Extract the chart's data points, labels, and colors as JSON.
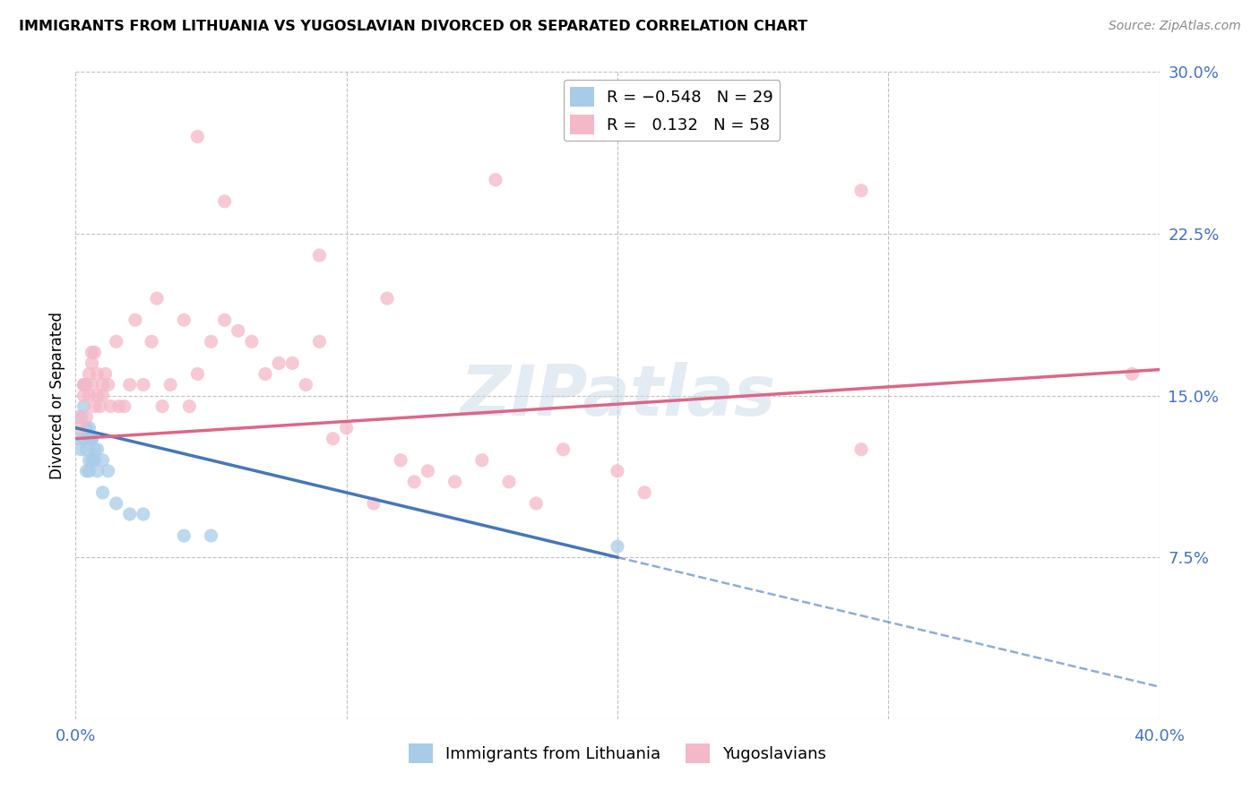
{
  "title": "IMMIGRANTS FROM LITHUANIA VS YUGOSLAVIAN DIVORCED OR SEPARATED CORRELATION CHART",
  "source": "Source: ZipAtlas.com",
  "ylabel": "Divorced or Separated",
  "xlim": [
    0.0,
    0.4
  ],
  "ylim": [
    0.0,
    0.3
  ],
  "watermark": "ZIPatlas",
  "legend_label1": "Immigrants from Lithuania",
  "legend_label2": "Yugoslavians",
  "blue_color": "#a8cce8",
  "pink_color": "#f4b8c8",
  "blue_line_color": "#4477bb",
  "pink_line_color": "#dd6688",
  "background_color": "#ffffff",
  "grid_color": "#bbbbbb",
  "blue_scatter_x": [
    0.001,
    0.002,
    0.002,
    0.003,
    0.003,
    0.003,
    0.004,
    0.004,
    0.004,
    0.005,
    0.005,
    0.005,
    0.005,
    0.006,
    0.006,
    0.006,
    0.007,
    0.007,
    0.008,
    0.008,
    0.01,
    0.01,
    0.012,
    0.015,
    0.02,
    0.025,
    0.04,
    0.05,
    0.2
  ],
  "blue_scatter_y": [
    0.13,
    0.14,
    0.125,
    0.155,
    0.145,
    0.13,
    0.135,
    0.125,
    0.115,
    0.13,
    0.135,
    0.12,
    0.115,
    0.12,
    0.13,
    0.13,
    0.125,
    0.12,
    0.125,
    0.115,
    0.12,
    0.105,
    0.115,
    0.1,
    0.095,
    0.095,
    0.085,
    0.085,
    0.08
  ],
  "pink_scatter_x": [
    0.001,
    0.002,
    0.003,
    0.003,
    0.004,
    0.004,
    0.005,
    0.005,
    0.006,
    0.006,
    0.006,
    0.007,
    0.007,
    0.008,
    0.008,
    0.009,
    0.01,
    0.01,
    0.011,
    0.012,
    0.013,
    0.015,
    0.016,
    0.018,
    0.02,
    0.022,
    0.025,
    0.028,
    0.03,
    0.032,
    0.035,
    0.04,
    0.042,
    0.045,
    0.05,
    0.055,
    0.06,
    0.065,
    0.07,
    0.075,
    0.08,
    0.085,
    0.09,
    0.095,
    0.1,
    0.11,
    0.12,
    0.125,
    0.13,
    0.14,
    0.15,
    0.16,
    0.17,
    0.18,
    0.2,
    0.21,
    0.29,
    0.39
  ],
  "pink_scatter_y": [
    0.14,
    0.135,
    0.15,
    0.155,
    0.14,
    0.155,
    0.16,
    0.15,
    0.17,
    0.155,
    0.165,
    0.145,
    0.17,
    0.16,
    0.15,
    0.145,
    0.155,
    0.15,
    0.16,
    0.155,
    0.145,
    0.175,
    0.145,
    0.145,
    0.155,
    0.185,
    0.155,
    0.175,
    0.195,
    0.145,
    0.155,
    0.185,
    0.145,
    0.16,
    0.175,
    0.185,
    0.18,
    0.175,
    0.16,
    0.165,
    0.165,
    0.155,
    0.175,
    0.13,
    0.135,
    0.1,
    0.12,
    0.11,
    0.115,
    0.11,
    0.12,
    0.11,
    0.1,
    0.125,
    0.115,
    0.105,
    0.125,
    0.16
  ],
  "pink_high_x": [
    0.045,
    0.055,
    0.09,
    0.115,
    0.155,
    0.29
  ],
  "pink_high_y": [
    0.27,
    0.24,
    0.215,
    0.195,
    0.25,
    0.245
  ],
  "blue_line_x0": 0.0,
  "blue_line_y0": 0.135,
  "blue_line_x1": 0.2,
  "blue_line_y1": 0.075,
  "blue_line_dash_x1": 0.4,
  "blue_line_dash_y1": 0.015,
  "pink_line_x0": 0.0,
  "pink_line_y0": 0.13,
  "pink_line_x1": 0.4,
  "pink_line_y1": 0.162
}
